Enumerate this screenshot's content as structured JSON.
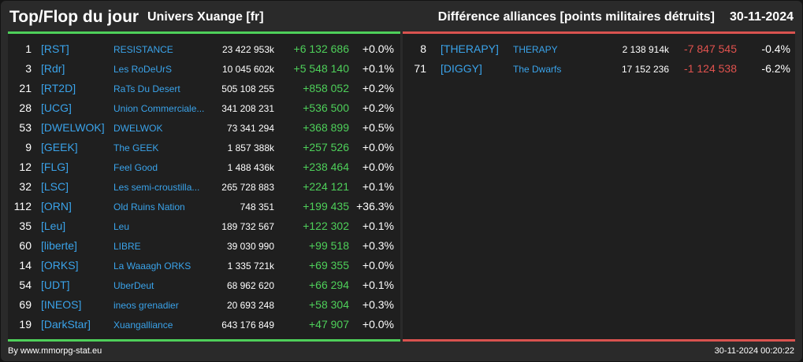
{
  "header": {
    "title": "Top/Flop du jour",
    "universe": "Univers Xuange [fr]",
    "metric": "Différence alliances [points militaires détruits]",
    "date": "30-11-2024"
  },
  "top": [
    {
      "rank": "1",
      "tag": "[RST]",
      "name": "RESISTANCE",
      "points": "23 422 953k",
      "diff": "+6 132 686",
      "pct": "+0.0%"
    },
    {
      "rank": "3",
      "tag": "[Rdr]",
      "name": "Les RoDeUrS",
      "points": "10 045 602k",
      "diff": "+5 548 140",
      "pct": "+0.1%"
    },
    {
      "rank": "21",
      "tag": "[RT2D]",
      "name": "RaTs Du Desert",
      "points": "505 108 255",
      "diff": "+858 052",
      "pct": "+0.2%"
    },
    {
      "rank": "28",
      "tag": "[UCG]",
      "name": "Union Commerciale...",
      "points": "341 208 231",
      "diff": "+536 500",
      "pct": "+0.2%"
    },
    {
      "rank": "53",
      "tag": "[DWELWOK]",
      "name": "DWELWOK",
      "points": "73 341 294",
      "diff": "+368 899",
      "pct": "+0.5%"
    },
    {
      "rank": "9",
      "tag": "[GEEK]",
      "name": "The GEEK",
      "points": "1 857 388k",
      "diff": "+257 526",
      "pct": "+0.0%"
    },
    {
      "rank": "12",
      "tag": "[FLG]",
      "name": "Feel Good",
      "points": "1 488 436k",
      "diff": "+238 464",
      "pct": "+0.0%"
    },
    {
      "rank": "32",
      "tag": "[LSC]",
      "name": "Les semi-croustilla...",
      "points": "265 728 883",
      "diff": "+224 121",
      "pct": "+0.1%"
    },
    {
      "rank": "112",
      "tag": "[ORN]",
      "name": "Old Ruins Nation",
      "points": "748 351",
      "diff": "+199 435",
      "pct": "+36.3%"
    },
    {
      "rank": "35",
      "tag": "[Leu]",
      "name": "Leu",
      "points": "189 732 567",
      "diff": "+122 302",
      "pct": "+0.1%"
    },
    {
      "rank": "60",
      "tag": "[liberte]",
      "name": "LIBRE",
      "points": "39 030 990",
      "diff": "+99 518",
      "pct": "+0.3%"
    },
    {
      "rank": "14",
      "tag": "[ORKS]",
      "name": "La Waaagh ORKS",
      "points": "1 335 721k",
      "diff": "+69 355",
      "pct": "+0.0%"
    },
    {
      "rank": "54",
      "tag": "[UDT]",
      "name": "UberDeut",
      "points": "68 962 620",
      "diff": "+66 294",
      "pct": "+0.1%"
    },
    {
      "rank": "69",
      "tag": "[INEOS]",
      "name": "ineos grenadier",
      "points": "20 693 248",
      "diff": "+58 304",
      "pct": "+0.3%"
    },
    {
      "rank": "19",
      "tag": "[DarkStar]",
      "name": "Xuangalliance",
      "points": "643 176 849",
      "diff": "+47 907",
      "pct": "+0.0%"
    }
  ],
  "flop": [
    {
      "rank": "8",
      "tag": "[THERAPY]",
      "name": "THERAPY",
      "points": "2 138 914k",
      "diff": "-7 847 545",
      "pct": "-0.4%"
    },
    {
      "rank": "71",
      "tag": "[DIGGY]",
      "name": "The Dwarfs",
      "points": "17 152 236",
      "diff": "-1 124 538",
      "pct": "-6.2%"
    }
  ],
  "footer": {
    "source": "By www.mmorpg-stat.eu",
    "timestamp": "30-11-2024 00:20:22"
  },
  "colors": {
    "background": "#2a2a2a",
    "panel": "#1f1f1f",
    "link": "#3aa3ea",
    "positive": "#4ed05a",
    "negative": "#e0524e"
  }
}
